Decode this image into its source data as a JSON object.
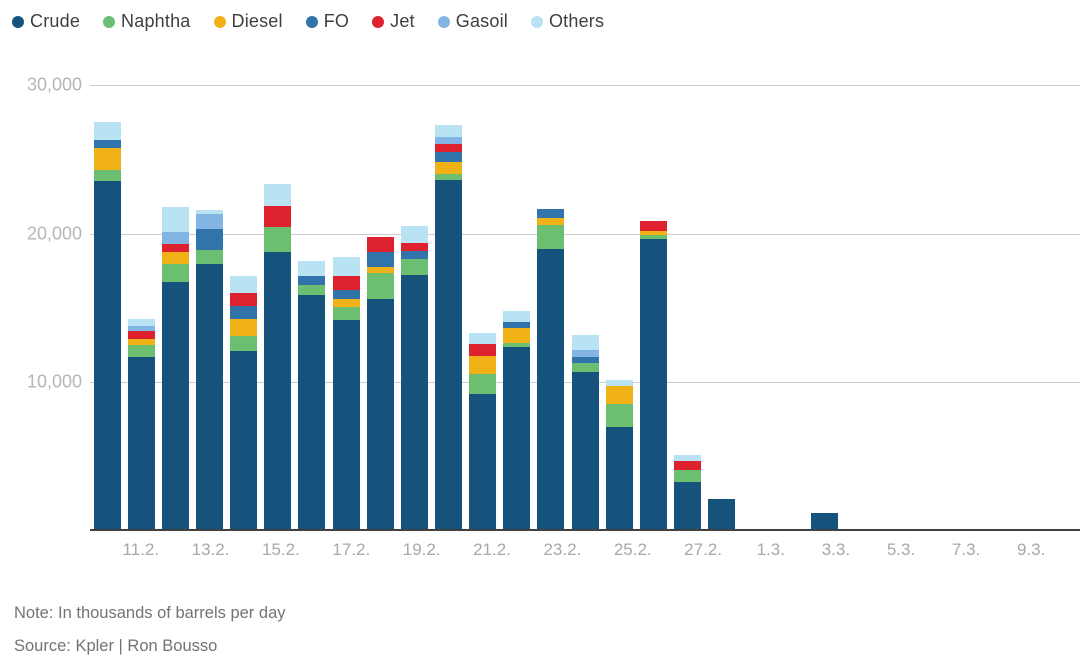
{
  "legend": {
    "items": [
      {
        "label": "Crude",
        "color": "#16537c"
      },
      {
        "label": "Naphtha",
        "color": "#6cbe70"
      },
      {
        "label": "Diesel",
        "color": "#f1b217"
      },
      {
        "label": "FO",
        "color": "#3173ab"
      },
      {
        "label": "Jet",
        "color": "#dd212f"
      },
      {
        "label": "Gasoil",
        "color": "#82b5e3"
      },
      {
        "label": "Others",
        "color": "#b9e3f3"
      }
    ]
  },
  "y_axis": {
    "ticks": [
      "30,000",
      "20,000",
      "10,000"
    ]
  },
  "note": "Note: In thousands of barrels per day",
  "source": "Source: Kpler | Ron Bousso",
  "chart_data": {
    "type": "bar",
    "stacked": true,
    "title": "",
    "xlabel": "",
    "ylabel": "",
    "unit": "thousands of barrels per day",
    "ylim": [
      0,
      30000
    ],
    "grid": true,
    "legend_position": "top-left",
    "categories": [
      "10.2.",
      "11.2.",
      "12.2.",
      "13.2.",
      "14.2.",
      "15.2.",
      "16.2.",
      "17.2.",
      "18.2.",
      "19.2.",
      "20.2.",
      "21.2.",
      "22.2.",
      "23.2.",
      "24.2.",
      "25.2.",
      "26.2.",
      "27.2.",
      "28.2.",
      "1.3.",
      "2.3.",
      "3.3.",
      "4.3.",
      "5.3.",
      "6.3.",
      "7.3.",
      "8.3.",
      "9.3.",
      "10.3."
    ],
    "x_tick_labels": [
      "",
      "11.2.",
      "",
      "13.2.",
      "",
      "15.2.",
      "",
      "17.2.",
      "",
      "19.2.",
      "",
      "21.2.",
      "",
      "23.2.",
      "",
      "25.2.",
      "",
      "27.2.",
      "",
      "1.3.",
      "",
      "3.3.",
      "",
      "5.3.",
      "",
      "7.3.",
      "",
      "9.3.",
      ""
    ],
    "series": [
      {
        "name": "Crude",
        "color": "#16537c",
        "values": [
          23400,
          11600,
          16600,
          17850,
          12000,
          18650,
          15750,
          14050,
          15450,
          17100,
          23450,
          9050,
          12250,
          18850,
          10550,
          6850,
          19500,
          3150,
          2000,
          0,
          0,
          1050,
          0,
          0,
          0,
          0,
          0,
          0,
          0
        ]
      },
      {
        "name": "Naphtha",
        "color": "#6cbe70",
        "values": [
          750,
          800,
          1250,
          900,
          1000,
          1650,
          650,
          900,
          1800,
          1050,
          450,
          1350,
          250,
          1600,
          600,
          1550,
          250,
          800,
          0,
          0,
          0,
          0,
          0,
          0,
          0,
          0,
          0,
          0,
          0
        ]
      },
      {
        "name": "Diesel",
        "color": "#f1b217",
        "values": [
          1450,
          350,
          800,
          0,
          1100,
          0,
          0,
          550,
          350,
          0,
          800,
          1250,
          1050,
          500,
          0,
          1250,
          300,
          0,
          0,
          0,
          0,
          0,
          0,
          0,
          0,
          0,
          0,
          0,
          0
        ]
      },
      {
        "name": "FO",
        "color": "#3173ab",
        "values": [
          550,
          0,
          0,
          1450,
          900,
          0,
          650,
          550,
          1050,
          550,
          650,
          0,
          400,
          550,
          450,
          0,
          0,
          0,
          0,
          0,
          0,
          0,
          0,
          0,
          0,
          0,
          0,
          0,
          0
        ]
      },
      {
        "name": "Jet",
        "color": "#dd212f",
        "values": [
          0,
          550,
          550,
          0,
          900,
          1450,
          0,
          1000,
          1000,
          550,
          550,
          800,
          0,
          0,
          0,
          0,
          650,
          650,
          0,
          0,
          0,
          0,
          0,
          0,
          0,
          0,
          0,
          0,
          0
        ]
      },
      {
        "name": "Gasoil",
        "color": "#82b5e3",
        "values": [
          0,
          350,
          800,
          1000,
          0,
          0,
          0,
          0,
          0,
          0,
          450,
          0,
          0,
          0,
          450,
          0,
          0,
          0,
          0,
          0,
          0,
          0,
          0,
          0,
          0,
          0,
          0,
          0,
          0
        ]
      },
      {
        "name": "Others",
        "color": "#b9e3f3",
        "values": [
          1200,
          500,
          1650,
          250,
          1100,
          1450,
          950,
          1250,
          0,
          1150,
          800,
          750,
          750,
          0,
          1000,
          400,
          0,
          350,
          0,
          0,
          0,
          0,
          0,
          0,
          0,
          0,
          0,
          0,
          0
        ]
      }
    ]
  }
}
